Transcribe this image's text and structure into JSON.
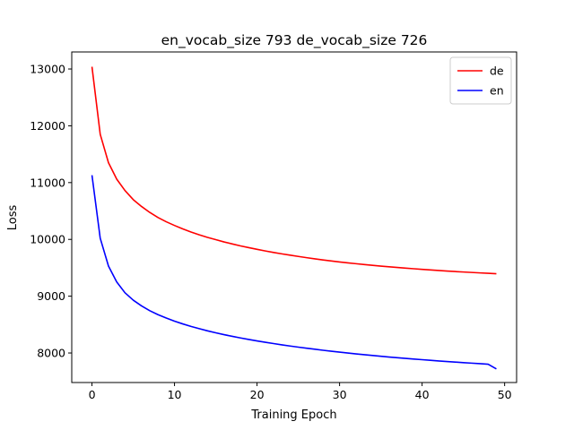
{
  "chart_data": {
    "type": "line",
    "title": "en_vocab_size 793 de_vocab_size 726",
    "xlabel": "Training Epoch",
    "ylabel": "Loss",
    "xlim": [
      -2.45,
      51.45
    ],
    "ylim": [
      7480,
      13300
    ],
    "xticks": [
      0,
      10,
      20,
      30,
      40,
      50
    ],
    "yticks": [
      8000,
      9000,
      10000,
      11000,
      12000,
      13000
    ],
    "grid": false,
    "legend_position": "top-right",
    "series": [
      {
        "name": "de",
        "color": "#ff0000",
        "x": [
          0,
          1,
          2,
          3,
          4,
          5,
          6,
          7,
          8,
          9,
          10,
          11,
          12,
          13,
          14,
          15,
          16,
          17,
          18,
          19,
          20,
          21,
          22,
          23,
          24,
          25,
          26,
          27,
          28,
          29,
          30,
          31,
          32,
          33,
          34,
          35,
          36,
          37,
          38,
          39,
          40,
          41,
          42,
          43,
          44,
          45,
          46,
          47,
          48,
          49
        ],
        "y": [
          13040,
          11850,
          11350,
          11060,
          10860,
          10700,
          10580,
          10475,
          10385,
          10310,
          10245,
          10185,
          10130,
          10080,
          10035,
          9995,
          9955,
          9920,
          9885,
          9855,
          9825,
          9797,
          9770,
          9745,
          9722,
          9700,
          9678,
          9658,
          9638,
          9620,
          9603,
          9587,
          9572,
          9557,
          9543,
          9530,
          9518,
          9506,
          9494,
          9483,
          9472,
          9462,
          9452,
          9443,
          9434,
          9426,
          9418,
          9410,
          9403,
          9396
        ]
      },
      {
        "name": "en",
        "color": "#0000ff",
        "x": [
          0,
          1,
          2,
          3,
          4,
          5,
          6,
          7,
          8,
          9,
          10,
          11,
          12,
          13,
          14,
          15,
          16,
          17,
          18,
          19,
          20,
          21,
          22,
          23,
          24,
          25,
          26,
          27,
          28,
          29,
          30,
          31,
          32,
          33,
          34,
          35,
          36,
          37,
          38,
          39,
          40,
          41,
          42,
          43,
          44,
          45,
          46,
          47,
          48,
          49
        ],
        "y": [
          11130,
          10020,
          9530,
          9250,
          9060,
          8930,
          8830,
          8745,
          8675,
          8615,
          8560,
          8512,
          8468,
          8428,
          8390,
          8355,
          8323,
          8293,
          8265,
          8238,
          8213,
          8189,
          8166,
          8144,
          8123,
          8103,
          8084,
          8066,
          8048,
          8031,
          8015,
          7999,
          7984,
          7970,
          7956,
          7942,
          7929,
          7917,
          7905,
          7893,
          7882,
          7871,
          7860,
          7850,
          7840,
          7830,
          7821,
          7812,
          7803,
          7720
        ]
      }
    ]
  }
}
